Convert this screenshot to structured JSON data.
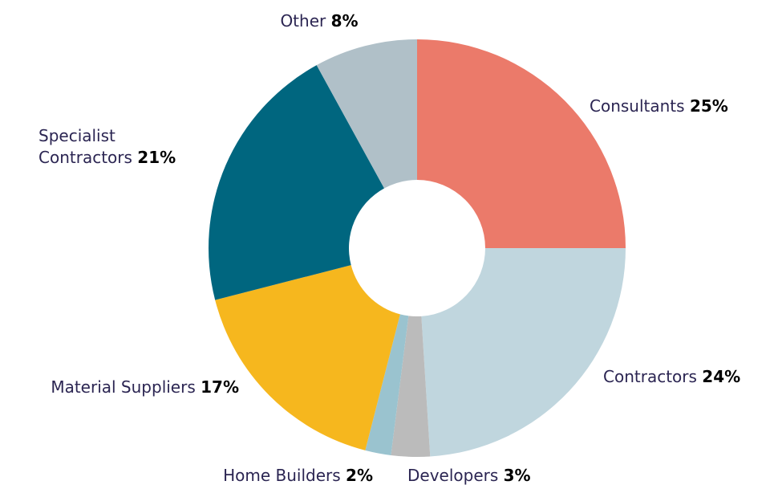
{
  "chart_data": {
    "type": "donut",
    "categories": [
      "Consultants",
      "Contractors",
      "Developers",
      "Home Builders",
      "Material Suppliers",
      "Specialist Contractors",
      "Other"
    ],
    "values": [
      25,
      24,
      3,
      2,
      17,
      21,
      8
    ],
    "value_labels": [
      "25%",
      "24%",
      "3%",
      "2%",
      "17%",
      "21%",
      "8%"
    ],
    "colors": [
      "#eb7a6a",
      "#c0d6de",
      "#bbbbbb",
      "#9ac3cf",
      "#f6b71e",
      "#00667f",
      "#b0c0c8"
    ]
  }
}
